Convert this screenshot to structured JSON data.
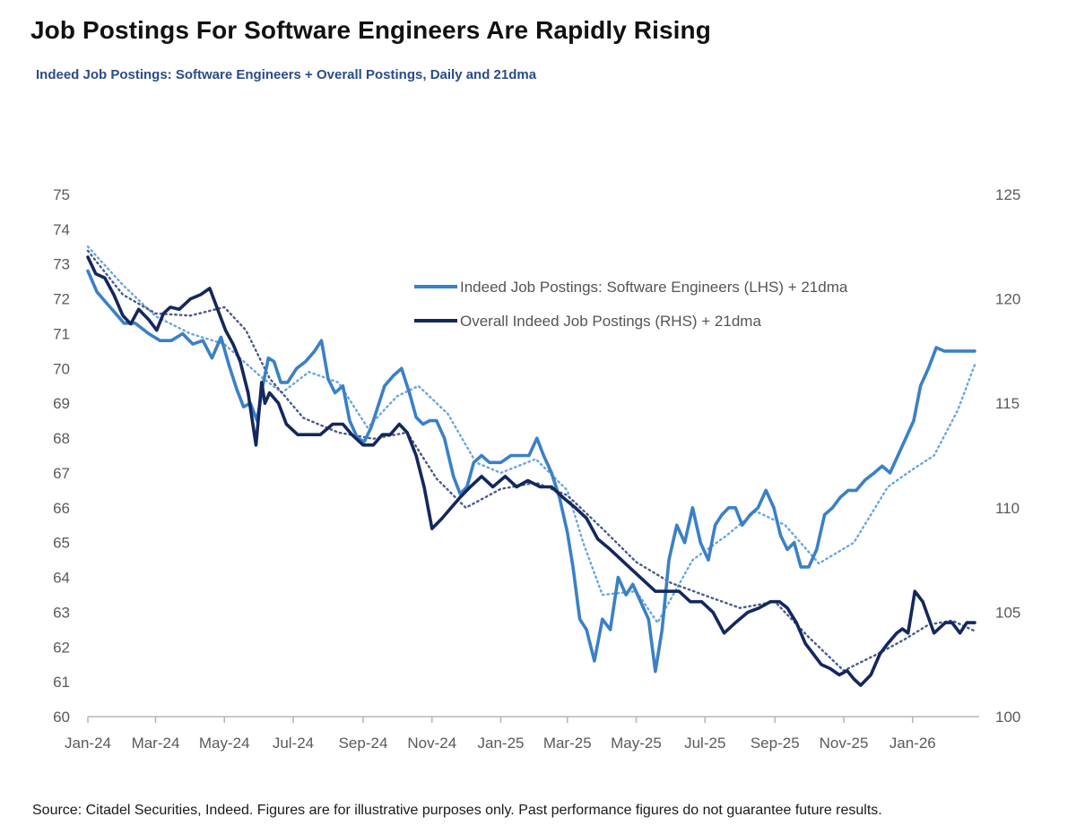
{
  "header": {
    "title": "Job Postings For Software Engineers Are Rapidly Rising",
    "subtitle": "Indeed Job Postings: Software Engineers + Overall Postings, Daily and 21dma"
  },
  "footer": {
    "source": "Source: Citadel Securities, Indeed. Figures are for illustrative purposes only. Past performance figures do not guarantee future results."
  },
  "chart_data": {
    "type": "line",
    "title": "Job Postings For Software Engineers Are Rapidly Rising",
    "subtitle": "Indeed Job Postings: Software Engineers + Overall Postings, Daily and 21dma",
    "x_start": "2024-01-01",
    "x_end": "2026-03-01",
    "x_tick_labels": [
      "Jan-24",
      "Mar-24",
      "May-24",
      "Jul-24",
      "Sep-24",
      "Nov-24",
      "Jan-25",
      "Mar-25",
      "May-25",
      "Jul-25",
      "Sep-25",
      "Nov-25",
      "Jan-26"
    ],
    "x_tick_dates": [
      "2024-01-01",
      "2024-03-01",
      "2024-05-01",
      "2024-07-01",
      "2024-09-01",
      "2024-11-01",
      "2025-01-01",
      "2025-03-01",
      "2025-05-01",
      "2025-07-01",
      "2025-09-01",
      "2025-11-01",
      "2026-01-01"
    ],
    "y_left": {
      "min": 60,
      "max": 75,
      "ticks": [
        60,
        61,
        62,
        63,
        64,
        65,
        66,
        67,
        68,
        69,
        70,
        71,
        72,
        73,
        74,
        75
      ]
    },
    "y_right": {
      "min": 100,
      "max": 125,
      "ticks": [
        100,
        105,
        110,
        115,
        120,
        125
      ]
    },
    "grid": false,
    "legend_position": "top-right",
    "colors": {
      "software": "#3a80c8",
      "software_ma": "#6aa6dc",
      "overall": "#14275e",
      "overall_ma": "#4a5a8a"
    },
    "legend": [
      {
        "label": "Indeed Job Postings: Software Engineers (LHS) + 21dma",
        "color": "#3a80c8"
      },
      {
        "label": "Overall Indeed Job Postings (RHS) + 21dma",
        "color": "#14275e"
      }
    ],
    "series": [
      {
        "name": "Indeed Job Postings: Software Engineers (LHS)",
        "axis": "left",
        "x": [
          "2024-01-01",
          "2024-01-09",
          "2024-01-17",
          "2024-01-25",
          "2024-02-02",
          "2024-02-12",
          "2024-02-24",
          "2024-03-05",
          "2024-03-15",
          "2024-03-25",
          "2024-04-03",
          "2024-04-12",
          "2024-04-20",
          "2024-04-28",
          "2024-05-05",
          "2024-05-12",
          "2024-05-18",
          "2024-05-24",
          "2024-05-30",
          "2024-06-04",
          "2024-06-09",
          "2024-06-14",
          "2024-06-20",
          "2024-06-26",
          "2024-07-04",
          "2024-07-12",
          "2024-07-20",
          "2024-07-26",
          "2024-08-01",
          "2024-08-07",
          "2024-08-14",
          "2024-08-20",
          "2024-08-27",
          "2024-09-02",
          "2024-09-08",
          "2024-09-14",
          "2024-09-20",
          "2024-09-28",
          "2024-10-05",
          "2024-10-12",
          "2024-10-18",
          "2024-10-24",
          "2024-10-30",
          "2024-11-05",
          "2024-11-12",
          "2024-11-20",
          "2024-11-26",
          "2024-12-02",
          "2024-12-08",
          "2024-12-15",
          "2024-12-22",
          "2025-01-01",
          "2025-01-10",
          "2025-01-18",
          "2025-01-26",
          "2025-02-02",
          "2025-02-08",
          "2025-02-15",
          "2025-02-22",
          "2025-03-01",
          "2025-03-06",
          "2025-03-12",
          "2025-03-18",
          "2025-03-25",
          "2025-04-01",
          "2025-04-08",
          "2025-04-15",
          "2025-04-22",
          "2025-04-28",
          "2025-05-05",
          "2025-05-12",
          "2025-05-18",
          "2025-05-24",
          "2025-05-30",
          "2025-06-06",
          "2025-06-13",
          "2025-06-20",
          "2025-06-27",
          "2025-07-04",
          "2025-07-10",
          "2025-07-16",
          "2025-07-22",
          "2025-07-28",
          "2025-08-03",
          "2025-08-10",
          "2025-08-17",
          "2025-08-24",
          "2025-08-31",
          "2025-09-06",
          "2025-09-12",
          "2025-09-18",
          "2025-09-24",
          "2025-10-01",
          "2025-10-08",
          "2025-10-15",
          "2025-10-22",
          "2025-10-29",
          "2025-11-05",
          "2025-11-12",
          "2025-11-20",
          "2025-11-28",
          "2025-12-05",
          "2025-12-12",
          "2025-12-19",
          "2025-12-26",
          "2026-01-02",
          "2026-01-08",
          "2026-01-15",
          "2026-01-22",
          "2026-01-29",
          "2026-02-05",
          "2026-02-12",
          "2026-02-19",
          "2026-02-25"
        ],
        "values": [
          72.8,
          72.2,
          71.9,
          71.6,
          71.3,
          71.3,
          71.0,
          70.8,
          70.8,
          71.0,
          70.7,
          70.8,
          70.3,
          70.9,
          70.1,
          69.4,
          68.9,
          69.0,
          68.5,
          69.5,
          70.3,
          70.2,
          69.6,
          69.6,
          70.0,
          70.2,
          70.5,
          70.8,
          69.7,
          69.3,
          69.5,
          68.5,
          68.0,
          67.9,
          68.3,
          68.9,
          69.5,
          69.8,
          70.0,
          69.3,
          68.6,
          68.4,
          68.5,
          68.5,
          68.0,
          66.9,
          66.4,
          66.6,
          67.3,
          67.5,
          67.3,
          67.3,
          67.5,
          67.5,
          67.5,
          68.0,
          67.5,
          67.0,
          66.3,
          65.3,
          64.3,
          62.8,
          62.5,
          61.6,
          62.8,
          62.5,
          64.0,
          63.5,
          63.8,
          63.3,
          62.8,
          61.3,
          62.5,
          64.5,
          65.5,
          65.0,
          66.0,
          65.0,
          64.5,
          65.5,
          65.8,
          66.0,
          66.0,
          65.5,
          65.8,
          66.0,
          66.5,
          66.0,
          65.2,
          64.8,
          65.0,
          64.3,
          64.3,
          64.8,
          65.8,
          66.0,
          66.3,
          66.5,
          66.5,
          66.8,
          67.0,
          67.2,
          67.0,
          67.5,
          68.0,
          68.5,
          69.5,
          70.0,
          70.6,
          70.5,
          70.5,
          70.5,
          70.5,
          70.5
        ]
      },
      {
        "name": "Indeed Job Postings: Software Engineers 21dma (LHS)",
        "axis": "left",
        "x": [
          "2024-01-01",
          "2024-02-01",
          "2024-03-01",
          "2024-04-01",
          "2024-05-01",
          "2024-06-01",
          "2024-06-21",
          "2024-07-15",
          "2024-08-10",
          "2024-09-05",
          "2024-10-01",
          "2024-10-20",
          "2024-11-15",
          "2024-12-10",
          "2025-01-01",
          "2025-02-01",
          "2025-03-01",
          "2025-03-15",
          "2025-04-01",
          "2025-05-01",
          "2025-05-20",
          "2025-06-20",
          "2025-07-20",
          "2025-08-15",
          "2025-09-10",
          "2025-10-10",
          "2025-11-10",
          "2025-12-10",
          "2026-01-01",
          "2026-01-20",
          "2026-02-10",
          "2026-02-25"
        ],
        "values": [
          73.5,
          72.4,
          71.5,
          71.0,
          70.7,
          69.8,
          69.3,
          69.9,
          69.6,
          68.3,
          69.2,
          69.5,
          68.7,
          67.3,
          67.0,
          67.4,
          66.5,
          65.0,
          63.5,
          63.6,
          62.7,
          64.5,
          65.2,
          65.9,
          65.5,
          64.4,
          65.0,
          66.6,
          67.1,
          67.5,
          68.8,
          70.1
        ]
      },
      {
        "name": "Overall Indeed Job Postings (RHS)",
        "axis": "right",
        "x": [
          "2024-01-01",
          "2024-01-08",
          "2024-01-16",
          "2024-01-24",
          "2024-02-01",
          "2024-02-08",
          "2024-02-15",
          "2024-02-24",
          "2024-03-02",
          "2024-03-08",
          "2024-03-14",
          "2024-03-22",
          "2024-04-01",
          "2024-04-10",
          "2024-04-18",
          "2024-04-25",
          "2024-05-02",
          "2024-05-09",
          "2024-05-15",
          "2024-05-22",
          "2024-05-29",
          "2024-06-03",
          "2024-06-06",
          "2024-06-10",
          "2024-06-18",
          "2024-06-25",
          "2024-07-05",
          "2024-07-15",
          "2024-07-25",
          "2024-08-05",
          "2024-08-14",
          "2024-08-22",
          "2024-09-01",
          "2024-09-10",
          "2024-09-18",
          "2024-09-25",
          "2024-10-03",
          "2024-10-10",
          "2024-10-18",
          "2024-10-25",
          "2024-11-01",
          "2024-11-10",
          "2024-11-18",
          "2024-11-26",
          "2024-12-05",
          "2024-12-15",
          "2024-12-25",
          "2025-01-05",
          "2025-01-15",
          "2025-01-25",
          "2025-02-05",
          "2025-02-15",
          "2025-02-25",
          "2025-03-08",
          "2025-03-18",
          "2025-03-28",
          "2025-04-08",
          "2025-04-18",
          "2025-04-28",
          "2025-05-08",
          "2025-05-18",
          "2025-05-28",
          "2025-06-08",
          "2025-06-18",
          "2025-06-28",
          "2025-07-08",
          "2025-07-18",
          "2025-07-28",
          "2025-08-08",
          "2025-08-18",
          "2025-08-28",
          "2025-09-05",
          "2025-09-12",
          "2025-09-20",
          "2025-09-28",
          "2025-10-05",
          "2025-10-12",
          "2025-10-20",
          "2025-10-28",
          "2025-11-04",
          "2025-11-10",
          "2025-11-16",
          "2025-11-25",
          "2025-12-03",
          "2025-12-10",
          "2025-12-18",
          "2025-12-23",
          "2025-12-28",
          "2026-01-03",
          "2026-01-10",
          "2026-01-20",
          "2026-01-30",
          "2026-02-05",
          "2026-02-12",
          "2026-02-18",
          "2026-02-25"
        ],
        "values": [
          122.0,
          121.2,
          121.0,
          120.2,
          119.2,
          118.8,
          119.5,
          119.0,
          118.5,
          119.3,
          119.6,
          119.5,
          120.0,
          120.2,
          120.5,
          119.5,
          118.5,
          117.8,
          117.0,
          115.5,
          113.0,
          116.0,
          115.0,
          115.5,
          115.0,
          114.0,
          113.5,
          113.5,
          113.5,
          114.0,
          114.0,
          113.5,
          113.0,
          113.0,
          113.5,
          113.5,
          114.0,
          113.6,
          112.5,
          111.0,
          109.0,
          109.5,
          110.0,
          110.5,
          111.0,
          111.5,
          111.0,
          111.5,
          111.0,
          111.3,
          111.0,
          111.0,
          110.5,
          110.0,
          109.5,
          108.5,
          108.0,
          107.5,
          107.0,
          106.5,
          106.0,
          106.0,
          106.0,
          105.5,
          105.5,
          105.0,
          104.0,
          104.5,
          105.0,
          105.2,
          105.5,
          105.5,
          105.2,
          104.5,
          103.5,
          103.0,
          102.5,
          102.3,
          102.0,
          102.2,
          101.8,
          101.5,
          102.0,
          103.0,
          103.5,
          104.0,
          104.2,
          104.0,
          106.0,
          105.5,
          104.0,
          104.5,
          104.5,
          104.0,
          104.5,
          104.5
        ]
      },
      {
        "name": "Overall Indeed Job Postings 21dma (RHS)",
        "axis": "right",
        "x": [
          "2024-01-01",
          "2024-02-01",
          "2024-03-01",
          "2024-04-01",
          "2024-05-01",
          "2024-05-20",
          "2024-06-10",
          "2024-07-10",
          "2024-08-10",
          "2024-09-10",
          "2024-10-10",
          "2024-11-05",
          "2024-12-01",
          "2025-01-01",
          "2025-02-01",
          "2025-03-01",
          "2025-04-01",
          "2025-05-01",
          "2025-06-01",
          "2025-07-01",
          "2025-08-01",
          "2025-09-01",
          "2025-10-01",
          "2025-11-01",
          "2025-12-01",
          "2025-12-25",
          "2026-01-15",
          "2026-02-05",
          "2026-02-25"
        ],
        "values": [
          122.3,
          120.2,
          119.3,
          119.2,
          119.6,
          118.5,
          116.2,
          114.3,
          113.6,
          113.3,
          113.6,
          111.4,
          110.0,
          110.9,
          111.2,
          110.6,
          109.0,
          107.4,
          106.4,
          105.8,
          105.2,
          105.5,
          103.8,
          102.2,
          103.0,
          103.7,
          104.4,
          104.6,
          104.1
        ]
      }
    ]
  }
}
